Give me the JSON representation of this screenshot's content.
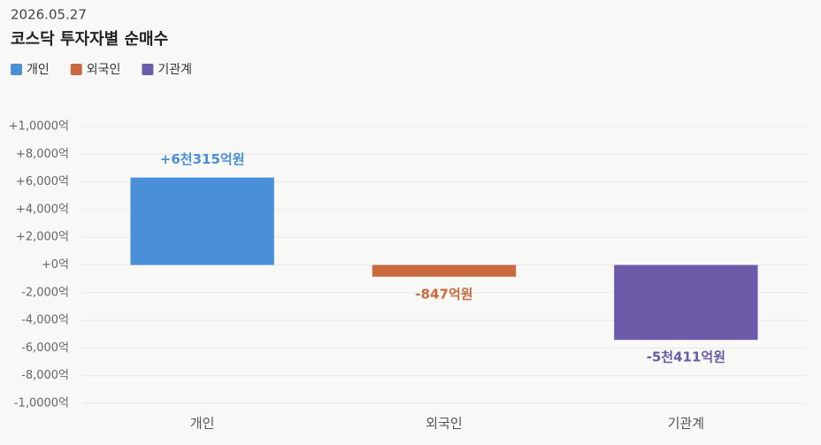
{
  "chart_data": {
    "type": "bar",
    "date": "2026.05.27",
    "title": "코스닥 투자자별 순매수",
    "categories": [
      "개인",
      "외국인",
      "기관계"
    ],
    "values": [
      6315,
      -847,
      -5411
    ],
    "value_labels": [
      "+6천315억원",
      "-847억원",
      "-5천411억원"
    ],
    "colors": [
      "#4a90d9",
      "#c96a3e",
      "#6b5ba8"
    ],
    "ylim": [
      -10000,
      10000
    ],
    "yticks": [
      {
        "value": -10000,
        "label": "-1,0000억"
      },
      {
        "value": -8000,
        "label": "-8,000억"
      },
      {
        "value": -6000,
        "label": "-6,000억"
      },
      {
        "value": -4000,
        "label": "-4,000억"
      },
      {
        "value": -2000,
        "label": "-2,000억"
      },
      {
        "value": 0,
        "label": "+0억"
      },
      {
        "value": 2000,
        "label": "+2,000억"
      },
      {
        "value": 4000,
        "label": "+4,000억"
      },
      {
        "value": 6000,
        "label": "+6,000억"
      },
      {
        "value": 8000,
        "label": "+8,000억"
      },
      {
        "value": 10000,
        "label": "+1,0000억"
      }
    ],
    "grid": true
  }
}
